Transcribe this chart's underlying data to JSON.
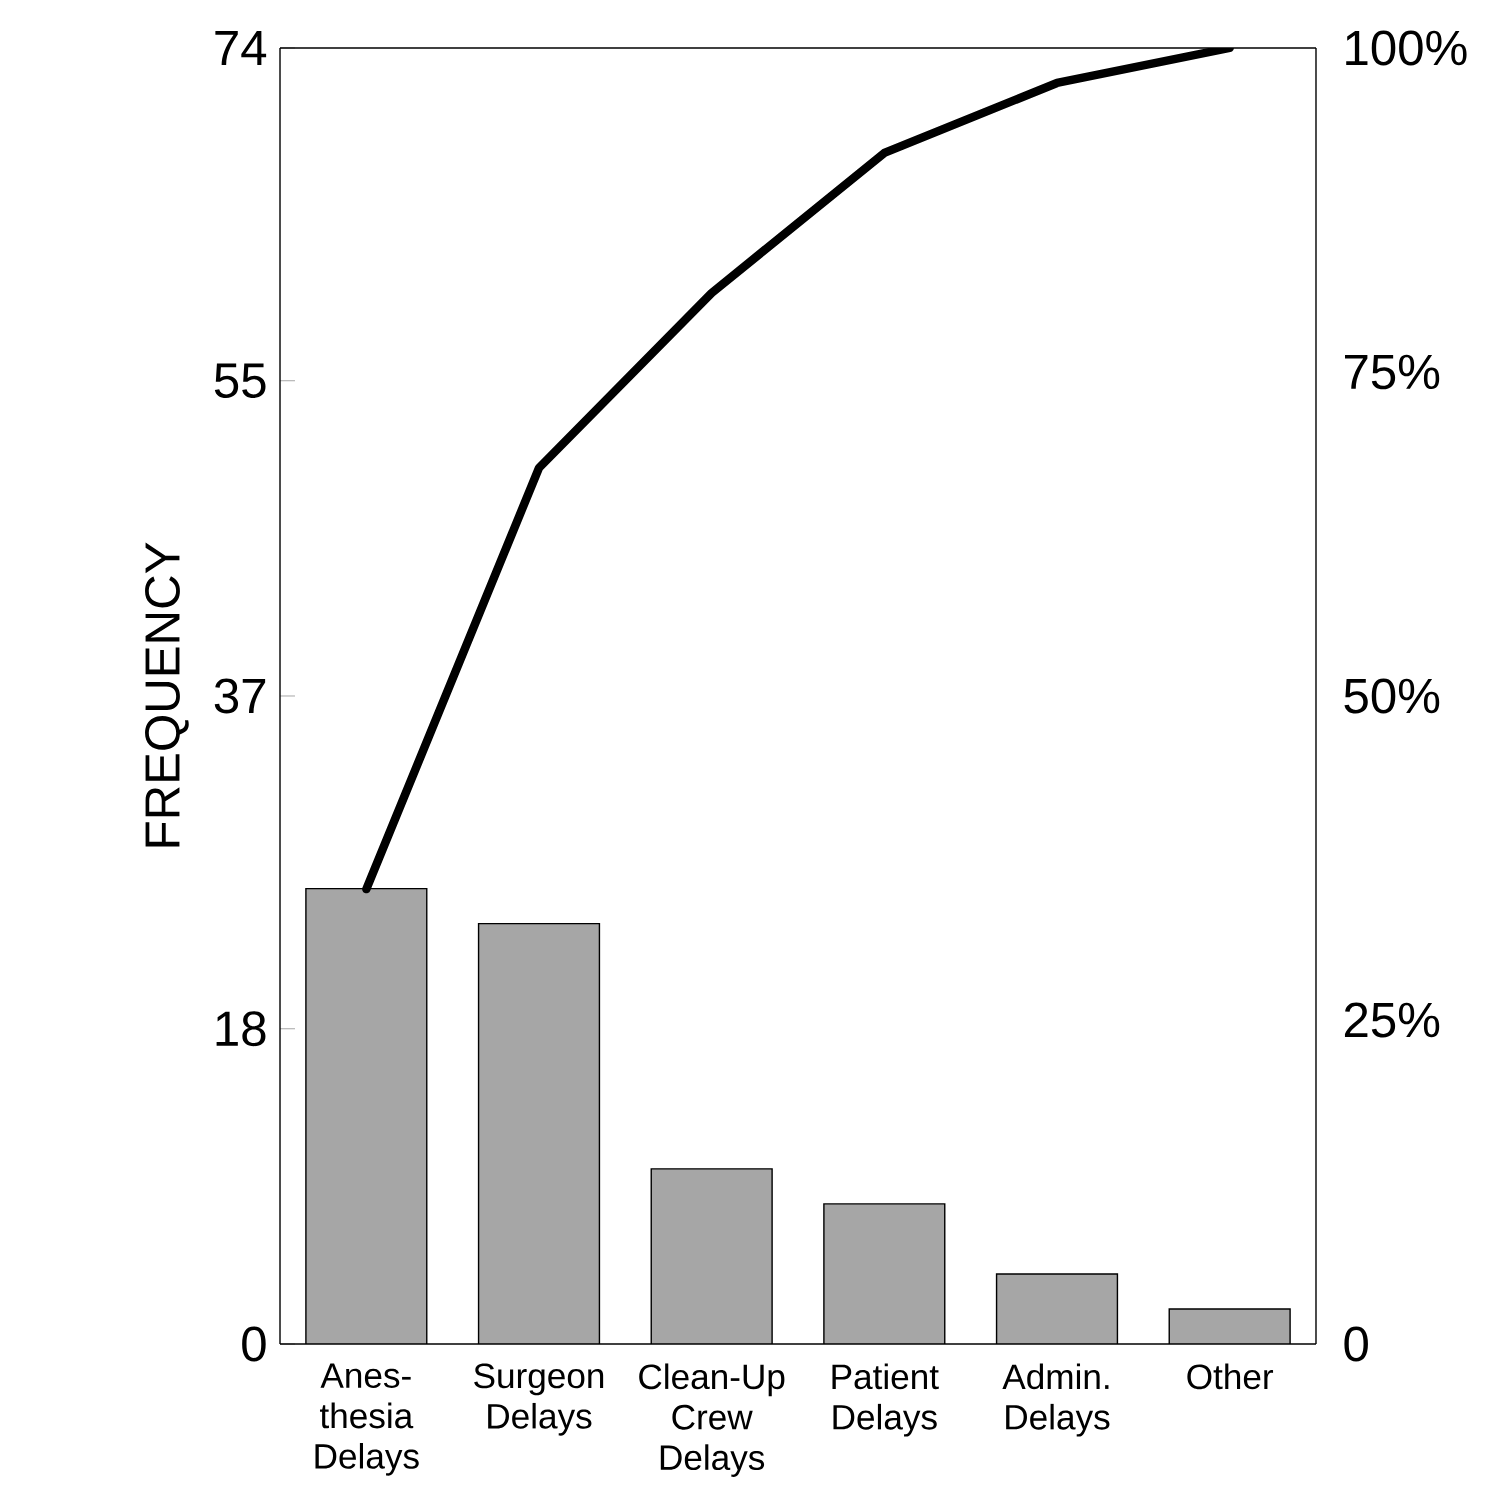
{
  "chart_data": {
    "type": "bar",
    "ylabel": "FREQUENCY",
    "categories": [
      "Anes-thesia Delays",
      "Surgeon Delays",
      "Clean-Up Crew Delays",
      "Patient Delays",
      "Admin. Delays",
      "Other"
    ],
    "series": [
      {
        "color": "#a6a6a6",
        "values": [
          26,
          24,
          10,
          8,
          4,
          2
        ]
      },
      {
        "type": "line",
        "color": "#000000",
        "axis": "y2",
        "values": [
          35.1,
          67.6,
          81.1,
          91.9,
          97.3,
          100
        ]
      }
    ],
    "ylim": [
      0,
      74
    ],
    "yticks": [
      0,
      18,
      37,
      55,
      74
    ],
    "y2lim": [
      0,
      100
    ],
    "y2ticks": [
      {
        "value": 0,
        "label": "0"
      },
      {
        "value": 25,
        "label": "25%"
      },
      {
        "value": 50,
        "label": "50%"
      },
      {
        "value": 75,
        "label": "75%"
      },
      {
        "value": 100,
        "label": "100%"
      }
    ],
    "grid": false,
    "marker": "none",
    "line_style": "solid"
  }
}
